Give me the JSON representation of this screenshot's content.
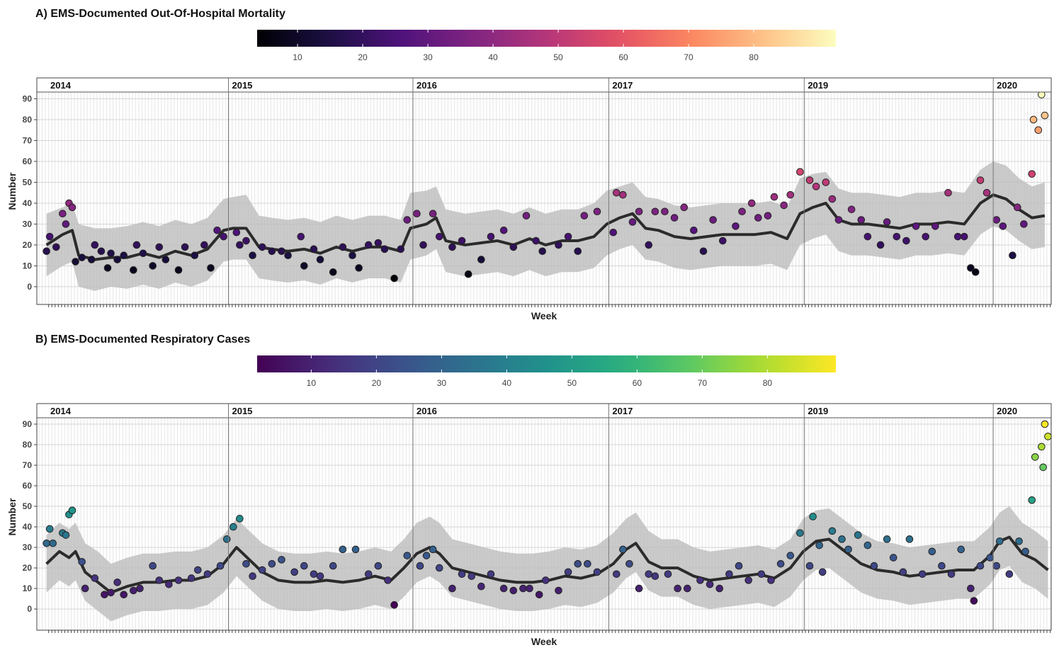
{
  "chart_data": [
    {
      "type": "scatter",
      "title": "A) EMS-Documented Out-Of-Hospital Mortality",
      "xlabel": "Week",
      "ylabel": "Number",
      "xlim": [
        -3,
        312
      ],
      "ylim": [
        -8.5,
        100
      ],
      "yticks": [
        0,
        10,
        20,
        30,
        40,
        50,
        60,
        70,
        80,
        90
      ],
      "grid": true,
      "colorbar": {
        "colormap": "magma",
        "lim": [
          3.8,
          92.6
        ],
        "ticks": [
          10,
          20,
          30,
          40,
          50,
          60,
          70,
          80
        ]
      },
      "facets": [
        {
          "label": "2014",
          "start": -3
        },
        {
          "label": "2015",
          "start": 56.5
        },
        {
          "label": "2016",
          "start": 113.8
        },
        {
          "label": "2017",
          "start": 174.6
        },
        {
          "label": "2019",
          "start": 235.3
        },
        {
          "label": "2020",
          "start": 294
        }
      ],
      "x": [
        0,
        1,
        3,
        5,
        6,
        7,
        8,
        9,
        11,
        14,
        15,
        17,
        19,
        20,
        22,
        24,
        27,
        28,
        30,
        33,
        35,
        37,
        41,
        43,
        46,
        49,
        51,
        53,
        55,
        59,
        60,
        62,
        64,
        67,
        70,
        73,
        75,
        79,
        80,
        83,
        85,
        89,
        92,
        95,
        97,
        100,
        103,
        105,
        108,
        110,
        112,
        115,
        117,
        120,
        122,
        126,
        129,
        131,
        135,
        138,
        142,
        145,
        149,
        152,
        154,
        159,
        162,
        165,
        167,
        171,
        176,
        177,
        179,
        182,
        184,
        187,
        189,
        192,
        195,
        198,
        201,
        204,
        207,
        210,
        214,
        216,
        219,
        221,
        224,
        226,
        229,
        231,
        234,
        237,
        239,
        242,
        244,
        246,
        250,
        253,
        255,
        259,
        261,
        264,
        267,
        270,
        273,
        276,
        280,
        283,
        285,
        287,
        288.5,
        290,
        292,
        295,
        297,
        300,
        301.5,
        303.5,
        306,
        306.5,
        308,
        309,
        310
      ],
      "values": [
        17,
        24,
        19,
        35,
        30,
        40,
        38,
        12,
        14,
        13,
        20,
        17,
        9,
        16,
        13,
        15,
        8,
        20,
        16,
        10,
        19,
        13,
        8,
        19,
        15,
        20,
        9,
        27,
        24,
        26,
        20,
        22,
        15,
        19,
        17,
        17,
        15,
        24,
        10,
        18,
        13,
        7,
        19,
        15,
        9,
        20,
        21,
        18,
        4,
        18,
        32,
        35,
        20,
        35,
        24,
        19,
        22,
        6,
        13,
        24,
        27,
        19,
        34,
        22,
        17,
        20,
        24,
        17,
        34,
        36,
        26,
        45,
        44,
        31,
        36,
        20,
        36,
        36,
        33,
        38,
        27,
        17,
        32,
        22,
        29,
        36,
        40,
        33,
        34,
        43,
        39,
        44,
        55,
        51,
        48,
        50,
        42,
        32,
        37,
        32,
        24,
        20,
        31,
        24,
        22,
        29,
        24,
        29,
        45,
        24,
        24,
        9,
        7,
        51,
        45,
        32,
        29,
        15,
        38,
        30,
        54,
        80,
        75,
        92,
        82
      ],
      "trend": {
        "x": [
          0,
          5,
          8,
          10,
          15,
          20,
          25,
          30,
          35,
          40,
          45,
          50,
          55,
          58,
          62,
          66,
          70,
          75,
          80,
          85,
          90,
          95,
          100,
          105,
          110,
          113,
          118,
          121,
          124,
          130,
          135,
          140,
          145,
          150,
          155,
          160,
          165,
          170,
          174,
          178,
          182,
          186,
          190,
          195,
          200,
          205,
          210,
          215,
          220,
          225,
          230,
          234,
          238,
          242,
          246,
          250,
          255,
          260,
          265,
          270,
          275,
          280,
          285,
          290,
          294,
          298,
          302,
          306,
          310
        ],
        "values": [
          20,
          25,
          27,
          15,
          13,
          14,
          14,
          16,
          14,
          17,
          15,
          18,
          27,
          28,
          28,
          19,
          18,
          17,
          18,
          16,
          19,
          17,
          19,
          19,
          17,
          28,
          30,
          33,
          22,
          20,
          21,
          22,
          20,
          23,
          20,
          22,
          22,
          24,
          30,
          33,
          35,
          28,
          27,
          24,
          23,
          24,
          25,
          25,
          25,
          26,
          23,
          35,
          38,
          40,
          32,
          30,
          30,
          29,
          28,
          30,
          30,
          31,
          30,
          40,
          44,
          42,
          37,
          33,
          34
        ],
        "lower": [
          5,
          10,
          12,
          0,
          -2,
          0,
          -1,
          1,
          -1,
          2,
          0,
          3,
          12,
          13,
          13,
          4,
          3,
          2,
          3,
          1,
          4,
          2,
          4,
          4,
          2,
          13,
          15,
          18,
          7,
          5,
          6,
          7,
          5,
          8,
          5,
          7,
          7,
          9,
          15,
          18,
          20,
          13,
          12,
          9,
          8,
          9,
          10,
          10,
          10,
          11,
          8,
          20,
          23,
          25,
          17,
          15,
          15,
          14,
          13,
          15,
          15,
          16,
          15,
          25,
          29,
          27,
          22,
          18,
          19
        ],
        "upper": [
          35,
          38,
          40,
          30,
          28,
          28,
          29,
          31,
          29,
          32,
          30,
          33,
          42,
          43,
          44,
          34,
          33,
          32,
          33,
          31,
          34,
          32,
          34,
          34,
          32,
          45,
          46,
          48,
          37,
          35,
          36,
          37,
          35,
          38,
          35,
          37,
          37,
          40,
          46,
          48,
          50,
          43,
          42,
          39,
          38,
          39,
          40,
          40,
          40,
          41,
          38,
          52,
          54,
          55,
          47,
          45,
          45,
          44,
          43,
          45,
          45,
          46,
          45,
          56,
          60,
          58,
          52,
          48,
          50
        ]
      }
    },
    {
      "type": "scatter",
      "title": "B) EMS-Documented Respiratory Cases",
      "xlabel": "Week",
      "ylabel": "Number",
      "xlim": [
        -3,
        312
      ],
      "ylim": [
        -10.3,
        100
      ],
      "yticks": [
        0,
        10,
        20,
        30,
        40,
        50,
        60,
        70,
        80,
        90
      ],
      "grid": true,
      "colorbar": {
        "colormap": "viridis",
        "lim": [
          1.7,
          90.5
        ],
        "ticks": [
          10,
          20,
          30,
          40,
          50,
          60,
          70,
          80
        ]
      },
      "facets": [
        {
          "label": "2014",
          "start": -3
        },
        {
          "label": "2015",
          "start": 56.5
        },
        {
          "label": "2016",
          "start": 113.8
        },
        {
          "label": "2017",
          "start": 174.6
        },
        {
          "label": "2019",
          "start": 235.3
        },
        {
          "label": "2020",
          "start": 294
        }
      ],
      "x": [
        0,
        1,
        2,
        5,
        6,
        7,
        8,
        11,
        12,
        15,
        18,
        20,
        22,
        24,
        27,
        29,
        33,
        35,
        38,
        41,
        45,
        47,
        50,
        54,
        56,
        58,
        60,
        62,
        64,
        67,
        70,
        73,
        77,
        80,
        83,
        85,
        89,
        92,
        96,
        100,
        103,
        106,
        108,
        112,
        116,
        118,
        120,
        122,
        126,
        129,
        132,
        135,
        138,
        142,
        145,
        148,
        150,
        153,
        155,
        159,
        162,
        165,
        168,
        171,
        177,
        179,
        181,
        184,
        187,
        189,
        193,
        196,
        199,
        203,
        206,
        209,
        212,
        215,
        218,
        222,
        225,
        228,
        231,
        234,
        237,
        238,
        240,
        241,
        244,
        247,
        249,
        252,
        255,
        257,
        261,
        263,
        266,
        268,
        272,
        275,
        278,
        281,
        284,
        287,
        288,
        290,
        293,
        295,
        296,
        299,
        302,
        304,
        306,
        307,
        309,
        309.5,
        310,
        311
      ],
      "values": [
        32,
        39,
        32,
        37,
        36,
        46,
        48,
        23,
        10,
        15,
        7,
        8,
        13,
        7,
        9,
        10,
        21,
        14,
        12,
        14,
        15,
        19,
        17,
        21,
        34,
        40,
        44,
        22,
        16,
        19,
        22,
        24,
        18,
        21,
        17,
        16,
        21,
        29,
        29,
        17,
        21,
        14,
        2,
        26,
        21,
        26,
        29,
        20,
        10,
        17,
        16,
        11,
        17,
        10,
        9,
        10,
        10,
        7,
        14,
        9,
        18,
        22,
        22,
        18,
        17,
        29,
        22,
        10,
        17,
        16,
        17,
        10,
        10,
        14,
        12,
        10,
        17,
        21,
        14,
        17,
        14,
        22,
        26,
        37,
        21,
        45,
        31,
        18,
        38,
        34,
        29,
        36,
        31,
        21,
        34,
        25,
        18,
        34,
        17,
        28,
        21,
        17,
        29,
        10,
        4,
        21,
        25,
        21,
        33,
        17,
        33,
        28,
        53,
        74,
        79,
        69,
        90,
        84
      ],
      "trend": {
        "x": [
          0,
          4,
          7,
          9,
          12,
          16,
          20,
          25,
          30,
          35,
          40,
          45,
          50,
          55,
          59,
          63,
          67,
          72,
          77,
          82,
          87,
          92,
          97,
          102,
          107,
          111,
          115,
          119,
          122,
          126,
          131,
          136,
          141,
          146,
          151,
          156,
          161,
          166,
          171,
          176,
          180,
          183,
          187,
          191,
          196,
          201,
          206,
          211,
          216,
          221,
          226,
          231,
          235,
          239,
          243,
          248,
          253,
          258,
          263,
          268,
          273,
          278,
          283,
          288,
          293,
          296,
          299,
          303,
          307,
          311
        ],
        "values": [
          22,
          28,
          25,
          28,
          18,
          13,
          8,
          11,
          13,
          13,
          14,
          14,
          16,
          22,
          30,
          24,
          18,
          14,
          13,
          13,
          14,
          13,
          14,
          16,
          14,
          20,
          27,
          30,
          27,
          20,
          18,
          16,
          14,
          13,
          13,
          14,
          16,
          15,
          17,
          22,
          29,
          32,
          23,
          20,
          20,
          16,
          14,
          15,
          16,
          17,
          15,
          20,
          28,
          33,
          34,
          28,
          22,
          19,
          18,
          16,
          17,
          18,
          19,
          19,
          26,
          33,
          35,
          27,
          24,
          19
        ],
        "lower": [
          8,
          14,
          11,
          14,
          4,
          -1,
          -6,
          -3,
          -1,
          -1,
          0,
          0,
          2,
          8,
          16,
          10,
          4,
          0,
          -1,
          -1,
          0,
          -1,
          0,
          2,
          0,
          6,
          13,
          16,
          13,
          6,
          4,
          2,
          0,
          -1,
          -1,
          0,
          2,
          1,
          3,
          8,
          15,
          18,
          9,
          6,
          6,
          2,
          0,
          1,
          2,
          3,
          1,
          6,
          14,
          19,
          20,
          14,
          8,
          5,
          4,
          2,
          3,
          4,
          5,
          5,
          12,
          19,
          21,
          13,
          10,
          5
        ],
        "upper": [
          36,
          42,
          39,
          42,
          32,
          28,
          22,
          25,
          27,
          27,
          28,
          28,
          30,
          36,
          44,
          38,
          32,
          28,
          27,
          27,
          28,
          27,
          28,
          30,
          28,
          34,
          42,
          45,
          42,
          34,
          32,
          30,
          28,
          27,
          27,
          28,
          30,
          29,
          31,
          37,
          44,
          47,
          38,
          34,
          34,
          30,
          28,
          29,
          30,
          31,
          29,
          34,
          44,
          48,
          49,
          43,
          37,
          33,
          32,
          30,
          31,
          32,
          33,
          33,
          40,
          47,
          50,
          42,
          38,
          33
        ]
      }
    }
  ]
}
